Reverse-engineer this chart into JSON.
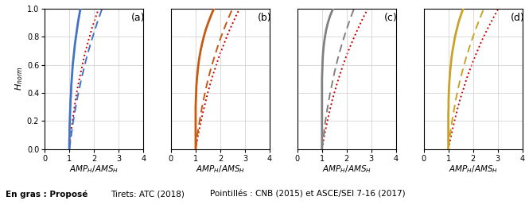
{
  "subplots": [
    {
      "label": "(a)",
      "color": "#4472C4"
    },
    {
      "label": "(b)",
      "color": "#C55A11"
    },
    {
      "label": "(c)",
      "color": "#808080"
    },
    {
      "label": "(d)",
      "color": "#C9A227"
    }
  ],
  "h_norm": [
    0.0,
    0.05,
    0.1,
    0.15,
    0.2,
    0.25,
    0.3,
    0.35,
    0.4,
    0.45,
    0.5,
    0.55,
    0.6,
    0.65,
    0.7,
    0.75,
    0.8,
    0.85,
    0.9,
    0.95,
    1.0
  ],
  "curves": {
    "a": {
      "solid": [
        1.0,
        1.0,
        1.01,
        1.01,
        1.02,
        1.03,
        1.04,
        1.05,
        1.07,
        1.08,
        1.1,
        1.12,
        1.14,
        1.17,
        1.2,
        1.23,
        1.27,
        1.31,
        1.35,
        1.4,
        1.45
      ],
      "dashed": [
        1.0,
        1.04,
        1.08,
        1.12,
        1.16,
        1.21,
        1.26,
        1.31,
        1.37,
        1.43,
        1.49,
        1.56,
        1.63,
        1.7,
        1.78,
        1.86,
        1.95,
        2.04,
        2.13,
        2.23,
        2.33
      ],
      "dotted": [
        1.0,
        1.03,
        1.06,
        1.09,
        1.13,
        1.17,
        1.21,
        1.25,
        1.3,
        1.35,
        1.41,
        1.47,
        1.53,
        1.59,
        1.66,
        1.74,
        1.82,
        1.9,
        1.99,
        2.09,
        2.19
      ]
    },
    "b": {
      "solid": [
        1.0,
        1.0,
        1.0,
        1.0,
        1.0,
        1.0,
        1.0,
        1.01,
        1.02,
        1.03,
        1.05,
        1.08,
        1.11,
        1.15,
        1.2,
        1.26,
        1.33,
        1.41,
        1.51,
        1.62,
        1.74
      ],
      "dashed": [
        1.0,
        1.04,
        1.07,
        1.11,
        1.16,
        1.21,
        1.26,
        1.32,
        1.38,
        1.44,
        1.51,
        1.58,
        1.66,
        1.75,
        1.84,
        1.93,
        2.03,
        2.14,
        2.25,
        2.37,
        2.49
      ],
      "dotted": [
        1.0,
        1.05,
        1.1,
        1.16,
        1.22,
        1.28,
        1.35,
        1.42,
        1.49,
        1.57,
        1.65,
        1.74,
        1.84,
        1.93,
        2.04,
        2.15,
        2.26,
        2.38,
        2.51,
        2.64,
        2.78
      ]
    },
    "c": {
      "solid": [
        1.0,
        1.0,
        1.0,
        1.0,
        1.0,
        1.0,
        1.0,
        1.0,
        1.0,
        1.0,
        1.0,
        1.01,
        1.02,
        1.03,
        1.05,
        1.08,
        1.12,
        1.17,
        1.24,
        1.33,
        1.45
      ],
      "dashed": [
        1.0,
        1.03,
        1.07,
        1.1,
        1.14,
        1.18,
        1.23,
        1.28,
        1.33,
        1.39,
        1.45,
        1.51,
        1.58,
        1.65,
        1.73,
        1.81,
        1.9,
        1.99,
        2.09,
        2.19,
        2.3
      ],
      "dotted": [
        1.0,
        1.05,
        1.1,
        1.16,
        1.22,
        1.28,
        1.35,
        1.42,
        1.5,
        1.58,
        1.67,
        1.76,
        1.86,
        1.96,
        2.07,
        2.19,
        2.31,
        2.44,
        2.57,
        2.71,
        2.86
      ]
    },
    "d": {
      "solid": [
        1.0,
        1.0,
        1.0,
        1.0,
        1.0,
        1.0,
        1.01,
        1.01,
        1.02,
        1.03,
        1.05,
        1.07,
        1.1,
        1.13,
        1.17,
        1.22,
        1.27,
        1.34,
        1.41,
        1.5,
        1.6
      ],
      "dashed": [
        1.0,
        1.04,
        1.07,
        1.11,
        1.15,
        1.2,
        1.25,
        1.3,
        1.36,
        1.42,
        1.49,
        1.56,
        1.64,
        1.72,
        1.81,
        1.9,
        2.0,
        2.1,
        2.21,
        2.32,
        2.44
      ],
      "dotted": [
        1.0,
        1.06,
        1.12,
        1.18,
        1.25,
        1.32,
        1.39,
        1.47,
        1.56,
        1.65,
        1.74,
        1.84,
        1.95,
        2.06,
        2.18,
        2.3,
        2.43,
        2.57,
        2.72,
        2.87,
        3.03
      ]
    }
  },
  "xlim": [
    0,
    4
  ],
  "ylim": [
    0,
    1
  ],
  "xticks": [
    0,
    1,
    2,
    3,
    4
  ],
  "yticks": [
    0,
    0.2,
    0.4,
    0.6,
    0.8,
    1
  ],
  "bg_color": "#FFFFFF",
  "grid_color": "#CCCCCC",
  "solid_lw": 2.0,
  "dashed_lw": 1.4,
  "dotted_lw": 1.4,
  "red_dotted_color": "#CC0000",
  "tick_fontsize": 7,
  "xlabel_fontsize": 7.5,
  "ylabel_fontsize": 8,
  "label_fontsize": 9
}
